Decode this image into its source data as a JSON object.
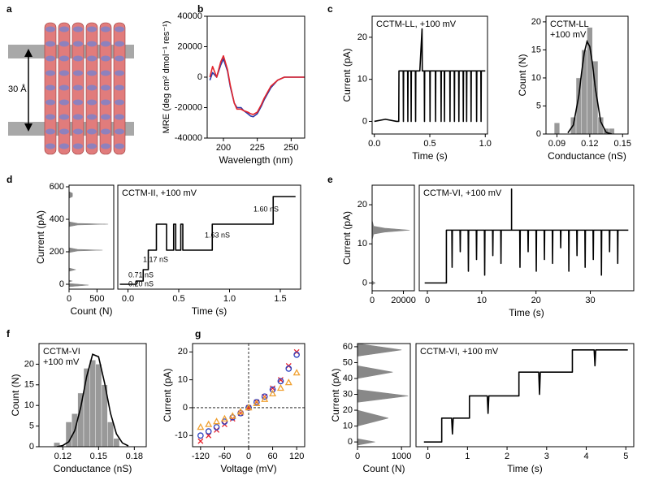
{
  "chart_data": [
    {
      "type": "image",
      "panel": "a",
      "annotation": "30 Å"
    },
    {
      "type": "line",
      "panel": "b",
      "xlabel": "Wavelength (nm)",
      "ylabel": "MRE (deg cm² dmol⁻¹ res⁻¹)",
      "xlim": [
        188,
        260
      ],
      "xticks": [
        200,
        225,
        250
      ],
      "ylim": [
        -40000,
        40000
      ],
      "yticks": [
        -40000,
        -20000,
        0,
        20000,
        40000
      ],
      "x": [
        190,
        192,
        195,
        198,
        200,
        203,
        205,
        208,
        210,
        213,
        215,
        218,
        220,
        222,
        225,
        228,
        230,
        235,
        240,
        245,
        250,
        255,
        260
      ],
      "series": [
        {
          "color": "#2b3aa8",
          "values": [
            -2000,
            3000,
            0,
            8000,
            12000,
            4000,
            -6000,
            -17000,
            -20000,
            -20000,
            -22000,
            -24000,
            -25500,
            -26000,
            -24000,
            -19000,
            -15000,
            -7000,
            -2000,
            0,
            0,
            0,
            0
          ]
        },
        {
          "color": "#e3242b",
          "values": [
            0,
            7000,
            0,
            10000,
            14000,
            5000,
            -5000,
            -17000,
            -21000,
            -21000,
            -22000,
            -23000,
            -24000,
            -24500,
            -23000,
            -18000,
            -14000,
            -6000,
            -2000,
            0,
            0,
            0,
            0
          ]
        }
      ]
    },
    {
      "type": "line",
      "panel": "c",
      "label": [
        "CCTM-LL, +100 mV"
      ],
      "xlabel": "Time (s)",
      "ylabel": "Current (pA)",
      "xlim": [
        -0.02,
        1.02
      ],
      "xticks": [
        {
          "value": 0,
          "label": "0.0"
        },
        0.5,
        {
          "value": 1,
          "label": "1.0"
        }
      ],
      "ylim": [
        -3,
        25
      ],
      "yticks": [
        0,
        10,
        20
      ],
      "x": [
        0,
        0.1,
        0.2,
        0.22,
        0.222,
        0.26,
        0.262,
        0.264,
        0.3,
        0.302,
        0.304,
        0.33,
        0.332,
        0.334,
        0.37,
        0.372,
        0.374,
        0.41,
        0.43,
        0.432,
        0.45,
        0.452,
        0.454,
        0.5,
        0.502,
        0.504,
        0.55,
        0.552,
        0.554,
        0.6,
        0.602,
        0.604,
        0.63,
        0.632,
        0.634,
        0.68,
        0.682,
        0.684,
        0.72,
        0.722,
        0.724,
        0.76,
        0.762,
        0.764,
        0.8,
        0.802,
        0.804,
        0.83,
        0.832,
        0.834,
        0.87,
        0.872,
        0.874,
        0.92,
        0.922,
        0.924,
        0.96,
        0.962,
        0.964,
        1.0
      ],
      "series": [
        {
          "color": "#000000",
          "values": [
            0,
            0.5,
            0,
            0,
            12,
            12,
            0,
            12,
            12,
            0,
            12,
            12,
            0,
            12,
            12,
            0,
            12,
            12,
            22,
            12,
            12,
            0,
            12,
            12,
            0,
            12,
            12,
            0,
            12,
            12,
            0,
            12,
            12,
            0,
            12,
            12,
            0,
            12,
            12,
            0,
            12,
            12,
            0,
            12,
            12,
            0,
            12,
            12,
            0,
            12,
            12,
            0,
            12,
            12,
            0,
            12,
            12,
            0,
            12,
            12
          ]
        }
      ]
    },
    {
      "type": "histogram",
      "label": [
        "CCTM-LL",
        "+100 mV"
      ],
      "xlabel": "Conductance (nS)",
      "ylabel": "Count (N)",
      "xlim": [
        0.08,
        0.155
      ],
      "xticks": [
        0.09,
        0.12,
        0.15
      ],
      "ylim": [
        0,
        21
      ],
      "yticks": [
        0,
        5,
        10,
        15,
        20
      ],
      "bins": [
        0.0875,
        0.0925,
        0.0975,
        0.1025,
        0.1075,
        0.1125,
        0.1175,
        0.1225,
        0.1275,
        0.1325,
        0.1375,
        0.1425
      ],
      "values": [
        2,
        0,
        0,
        3,
        10,
        15,
        19,
        13,
        3,
        1,
        1
      ],
      "color": "#999999",
      "fit": {
        "color": "#000000",
        "x": [
          0.1,
          0.105,
          0.11,
          0.1125,
          0.115,
          0.1175,
          0.12,
          0.1225,
          0.125,
          0.13,
          0.135,
          0.14
        ],
        "values": [
          0.2,
          1.6,
          6.8,
          10.9,
          14.5,
          16.5,
          15.6,
          12.5,
          8.3,
          2.2,
          0.3,
          0
        ]
      }
    },
    {
      "type": "area",
      "orientation": "horizontal",
      "panel": "d",
      "xlabel": "Count (N)",
      "ylabel": "Current (pA)",
      "xlim": [
        0,
        800
      ],
      "xticks": [
        0,
        500
      ],
      "ylim": [
        -30,
        610
      ],
      "yticks": [
        0,
        200,
        400,
        600
      ],
      "y": [
        -40,
        -15,
        -5,
        5,
        15,
        20,
        25,
        80,
        90,
        100,
        195,
        205,
        210,
        215,
        225,
        355,
        365,
        370,
        375,
        385,
        530,
        540,
        560,
        570,
        600
      ],
      "values": [
        0,
        0,
        350,
        0,
        0,
        60,
        0,
        0,
        120,
        0,
        0,
        150,
        600,
        150,
        0,
        0,
        150,
        700,
        150,
        0,
        0,
        60,
        60,
        0,
        0
      ],
      "color": "#888888"
    },
    {
      "type": "line",
      "label": [
        "CCTM-II, +100 mV"
      ],
      "annotations": [
        "0.20 nS",
        "0.71 nS",
        "1.17 nS",
        "1.63 nS",
        "1.60 nS"
      ],
      "xlabel": "Time (s)",
      "xlim": [
        -0.1,
        1.7
      ],
      "xticks": [
        {
          "value": 0,
          "label": "0.0"
        },
        0.5,
        {
          "value": 1,
          "label": "1.0"
        },
        1.5
      ],
      "ylim": [
        -30,
        610
      ],
      "x": [
        -0.08,
        0.08,
        0.08,
        0.15,
        0.15,
        0.2,
        0.2,
        0.28,
        0.28,
        0.38,
        0.38,
        0.45,
        0.45,
        0.47,
        0.47,
        0.52,
        0.52,
        0.54,
        0.54,
        0.83,
        0.83,
        1.43,
        1.43,
        1.65
      ],
      "series": [
        {
          "color": "#000000",
          "values": [
            0,
            0,
            20,
            20,
            90,
            90,
            210,
            210,
            370,
            370,
            210,
            210,
            370,
            370,
            210,
            210,
            370,
            370,
            210,
            210,
            370,
            370,
            540,
            540
          ]
        }
      ]
    },
    {
      "type": "area",
      "orientation": "horizontal",
      "panel": "e",
      "ylabel": "Current (pA)",
      "xlim": [
        0,
        27000
      ],
      "xticks": [
        0,
        20000
      ],
      "ylim": [
        -2,
        25
      ],
      "yticks": [
        0,
        10,
        20
      ],
      "y": [
        -2,
        -0.5,
        0,
        0.5,
        2,
        11,
        12.5,
        13,
        13.5,
        14,
        14.5,
        16,
        24
      ],
      "values": [
        0,
        0,
        2000,
        0,
        0,
        0,
        1000,
        8000,
        24000,
        8000,
        1000,
        0,
        0
      ],
      "color": "#888888"
    },
    {
      "type": "line",
      "label": [
        "CCTM-VI, +100 mV"
      ],
      "xlabel": "Time (s)",
      "xlim": [
        -1.5,
        38
      ],
      "xticks": [
        0,
        10,
        20,
        30
      ],
      "ylim": [
        -2,
        25
      ],
      "x": [
        -0.5,
        3.5,
        3.5,
        4.5,
        4.55,
        4.6,
        6,
        6.05,
        6.1,
        7.5,
        7.55,
        7.6,
        9,
        9.05,
        9.1,
        10.5,
        10.55,
        10.6,
        12,
        12.05,
        12.1,
        13.5,
        13.55,
        13.6,
        15.5,
        15.5,
        15.5,
        17,
        17.05,
        17.1,
        18.5,
        18.55,
        18.6,
        20,
        20.05,
        20.1,
        21.5,
        21.55,
        21.6,
        23,
        23.05,
        23.1,
        24.5,
        24.55,
        24.6,
        26,
        26.05,
        26.1,
        27.5,
        27.55,
        27.6,
        29,
        29.05,
        29.1,
        30.5,
        30.55,
        30.6,
        32,
        32.05,
        32.1,
        33.5,
        33.55,
        33.6,
        35,
        35.05,
        35.1,
        37
      ],
      "series": [
        {
          "color": "#000000",
          "values": [
            0,
            0,
            13.5,
            13.5,
            4,
            13.5,
            13.5,
            8,
            13.5,
            13.5,
            3,
            13.5,
            13.5,
            6,
            13.5,
            13.5,
            2,
            13.5,
            13.5,
            7,
            13.5,
            13.5,
            5,
            13.5,
            13.5,
            24,
            13.5,
            13.5,
            4,
            13.5,
            13.5,
            8,
            13.5,
            13.5,
            3,
            13.5,
            13.5,
            6,
            13.5,
            13.5,
            5,
            13.5,
            13.5,
            9,
            13.5,
            13.5,
            3,
            13.5,
            13.5,
            7,
            13.5,
            13.5,
            4,
            13.5,
            13.5,
            6,
            13.5,
            13.5,
            2,
            13.5,
            13.5,
            8,
            13.5,
            13.5,
            5,
            13.5,
            13.5
          ]
        }
      ]
    },
    {
      "type": "histogram",
      "panel": "f",
      "label": [
        "CCTM-VI",
        "+100 mV"
      ],
      "xlabel": "Conductance (nS)",
      "ylabel": "Count (N)",
      "xlim": [
        0.1,
        0.19
      ],
      "xticks": [
        0.12,
        0.15,
        0.18
      ],
      "ylim": [
        0,
        25
      ],
      "yticks": [
        0,
        5,
        10,
        15,
        20
      ],
      "bins": [
        0.1125,
        0.1175,
        0.1225,
        0.1275,
        0.1325,
        0.1375,
        0.1425,
        0.1475,
        0.1525,
        0.1575,
        0.1625,
        0.1675
      ],
      "values": [
        1,
        0,
        6,
        8,
        13,
        19,
        21,
        20,
        15,
        6,
        2
      ],
      "color": "#999999",
      "fit": {
        "color": "#000000",
        "x": [
          0.115,
          0.12,
          0.125,
          0.13,
          0.135,
          0.14,
          0.145,
          0.15,
          0.155,
          0.16,
          0.165,
          0.17,
          0.175
        ],
        "values": [
          0,
          0.3,
          1.2,
          3.9,
          9.5,
          17,
          22.4,
          21.8,
          15.5,
          8.1,
          3.1,
          0.9,
          0.2
        ]
      }
    },
    {
      "type": "scatter",
      "panel": "g",
      "xlabel": "Voltage (mV)",
      "ylabel": "Current (pA)",
      "xlim": [
        -140,
        140
      ],
      "xticks": [
        -120,
        -60,
        0,
        60,
        120
      ],
      "ylim": [
        -14,
        23
      ],
      "yticks": [
        -10,
        0,
        10,
        20
      ],
      "x": [
        -120,
        -100,
        -80,
        -60,
        -40,
        -20,
        0,
        20,
        40,
        60,
        80,
        100,
        120
      ],
      "series": [
        {
          "color": "#e8202a",
          "marker": "x",
          "values": [
            -12,
            -10,
            -8,
            -6,
            -4,
            -2,
            0,
            2,
            4,
            7,
            10,
            15,
            20
          ]
        },
        {
          "color": "#2a3fbf",
          "marker": "o",
          "values": [
            -10,
            -8.5,
            -7,
            -5,
            -3.5,
            -2,
            0,
            2,
            4,
            6.5,
            9.5,
            14,
            19
          ]
        },
        {
          "color": "#f0a030",
          "marker": "^",
          "values": [
            -7,
            -6,
            -5,
            -4,
            -3,
            -1.5,
            0,
            1.5,
            3,
            5,
            7,
            9,
            12.5
          ]
        }
      ]
    },
    {
      "type": "area",
      "orientation": "horizontal",
      "xlabel": "Count (N)",
      "ylabel": "Current (pA)",
      "xlim": [
        0,
        1200
      ],
      "xticks": [
        0,
        1000
      ],
      "ylim": [
        -3,
        62
      ],
      "yticks": [
        0,
        10,
        20,
        30,
        40,
        50,
        60
      ],
      "y": [
        -2,
        0,
        2,
        10,
        15,
        20,
        25,
        29,
        33,
        40,
        44,
        48,
        54,
        58,
        62
      ],
      "values": [
        0,
        400,
        0,
        0,
        700,
        0,
        0,
        1150,
        0,
        0,
        800,
        0,
        0,
        1000,
        0
      ],
      "color": "#888888"
    },
    {
      "type": "line",
      "label": [
        "CCTM-VI, +100 mV"
      ],
      "xlabel": "Time (s)",
      "xlim": [
        -0.3,
        5.2
      ],
      "xticks": [
        0,
        1,
        2,
        3,
        4,
        5
      ],
      "ylim": [
        -3,
        62
      ],
      "x": [
        -0.1,
        0.35,
        0.35,
        0.6,
        0.62,
        0.64,
        1.05,
        1.05,
        1.5,
        1.52,
        1.54,
        2.3,
        2.3,
        2.8,
        2.82,
        2.84,
        3.65,
        3.65,
        4.2,
        4.22,
        4.24,
        5.05
      ],
      "series": [
        {
          "color": "#000000",
          "values": [
            0,
            0,
            15,
            15,
            5,
            15,
            15,
            29,
            29,
            18,
            29,
            29,
            44,
            44,
            30,
            44,
            44,
            58,
            58,
            48,
            58,
            58
          ]
        }
      ]
    }
  ]
}
